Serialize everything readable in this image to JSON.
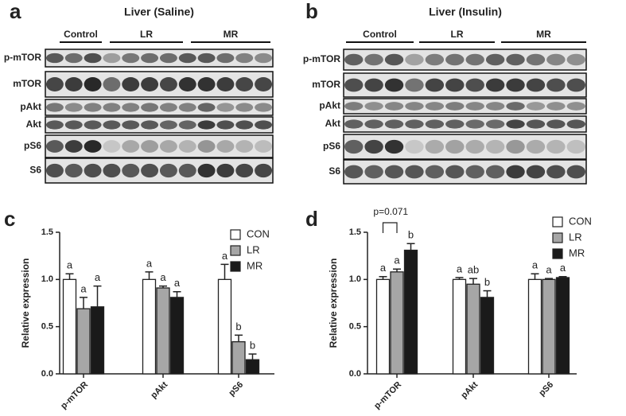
{
  "blots": [
    {
      "panel_label": "a",
      "title": "Liver (Saline)",
      "groups": [
        "Control",
        "LR",
        "MR"
      ],
      "rows": [
        "p-mTOR",
        "mTOR",
        "pAkt",
        "Akt",
        "pS6",
        "S6"
      ]
    },
    {
      "panel_label": "b",
      "title": "Liver (Insulin)",
      "groups": [
        "Control",
        "LR",
        "MR"
      ],
      "rows": [
        "p-mTOR",
        "mTOR",
        "pAkt",
        "Akt",
        "pS6",
        "S6"
      ]
    }
  ],
  "chart_data": [
    {
      "type": "bar",
      "panel_label": "c",
      "ylabel": "Relative expression",
      "categories": [
        "p-mTOR",
        "pAkt",
        "pS6"
      ],
      "ylim": [
        0,
        1.5
      ],
      "yticks": [
        {
          "value": 0,
          "label": "0.0"
        },
        {
          "value": 0.5,
          "label": "0.5"
        },
        {
          "value": 1,
          "label": "1.0"
        },
        {
          "value": 1.5,
          "label": "1.5"
        }
      ],
      "legend": "upper right",
      "series": [
        {
          "name": "CON",
          "color": "#ffffff",
          "values": [
            1.0,
            1.0,
            1.0
          ],
          "errors": [
            0.06,
            0.08,
            0.16
          ],
          "letters": [
            "a",
            "a",
            "a"
          ]
        },
        {
          "name": "LR",
          "color": "#a6a6a6",
          "values": [
            0.69,
            0.91,
            0.34
          ],
          "errors": [
            0.12,
            0.02,
            0.07
          ],
          "letters": [
            "a",
            "a",
            "b"
          ]
        },
        {
          "name": "MR",
          "color": "#1a1a1a",
          "values": [
            0.71,
            0.81,
            0.15
          ],
          "errors": [
            0.22,
            0.06,
            0.06
          ],
          "letters": [
            "a",
            "a",
            "b"
          ]
        }
      ]
    },
    {
      "type": "bar",
      "panel_label": "d",
      "ylabel": "Relative expression",
      "categories": [
        "p-mTOR",
        "pAkt",
        "pS6"
      ],
      "ylim": [
        0,
        1.5
      ],
      "yticks": [
        {
          "value": 0,
          "label": "0.0"
        },
        {
          "value": 0.5,
          "label": "0.5"
        },
        {
          "value": 1,
          "label": "1.0"
        },
        {
          "value": 1.5,
          "label": "1.5"
        }
      ],
      "legend": "upper right",
      "annotation": "p=0.071",
      "series": [
        {
          "name": "CON",
          "color": "#ffffff",
          "values": [
            1.0,
            1.0,
            1.0
          ],
          "errors": [
            0.03,
            0.02,
            0.06
          ],
          "letters": [
            "a",
            "a",
            "a"
          ]
        },
        {
          "name": "LR",
          "color": "#a6a6a6",
          "values": [
            1.08,
            0.95,
            1.0
          ],
          "errors": [
            0.03,
            0.06,
            0.01
          ],
          "letters": [
            "a",
            "ab",
            "a"
          ]
        },
        {
          "name": "MR",
          "color": "#1a1a1a",
          "values": [
            1.31,
            0.81,
            1.02
          ],
          "errors": [
            0.07,
            0.07,
            0.01
          ],
          "letters": [
            "b",
            "b",
            "a"
          ]
        }
      ]
    }
  ]
}
